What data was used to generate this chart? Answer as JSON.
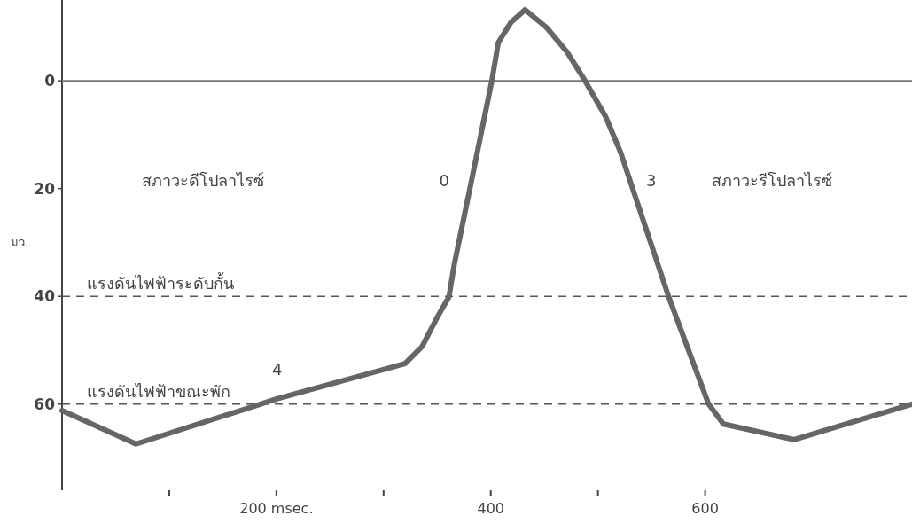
{
  "chart_data": {
    "type": "line",
    "ylabel": "มว.",
    "x": [
      0,
      69,
      201,
      320,
      336,
      350,
      361,
      366,
      383,
      401,
      407,
      419,
      432,
      452,
      471,
      488,
      507,
      521,
      566,
      603,
      617,
      683,
      793
    ],
    "values": [
      61.2,
      67.4,
      59.0,
      52.5,
      49.3,
      43.9,
      40.1,
      34.0,
      17.6,
      0,
      -7.1,
      -10.9,
      -13.2,
      -9.9,
      -5.4,
      0,
      6.6,
      13.2,
      40.1,
      59.9,
      63.7,
      66.6,
      60.0
    ],
    "color": "#666666",
    "line_style": "solid",
    "marker": "none",
    "grid": false,
    "xlim": [
      0,
      793
    ],
    "ylim": [
      76,
      -15
    ],
    "xticks": [
      {
        "value": 100,
        "label": null
      },
      {
        "value": 200,
        "label": "200 msec."
      },
      {
        "value": 300,
        "label": null
      },
      400,
      {
        "value": 500,
        "label": null
      },
      600
    ],
    "yticks": [
      0,
      20,
      40,
      60
    ],
    "ref_lines": [
      {
        "axis": "y",
        "value": 0,
        "label": null,
        "color": "#777777",
        "line_style": "solid"
      },
      {
        "axis": "y",
        "value": 40,
        "label": "แรงดันไฟฟ้าระดับกั้น",
        "color": "#555555",
        "line_style": "dashed"
      },
      {
        "axis": "y",
        "value": 60,
        "label": "แรงดันไฟฟ้าขณะพัก",
        "color": "#555555",
        "line_style": "dashed"
      }
    ],
    "annotations": [
      "สภาวะดีโปลาไรซ์",
      "0",
      "3",
      "สภาวะรีโปลาไรซ์",
      "4"
    ]
  }
}
